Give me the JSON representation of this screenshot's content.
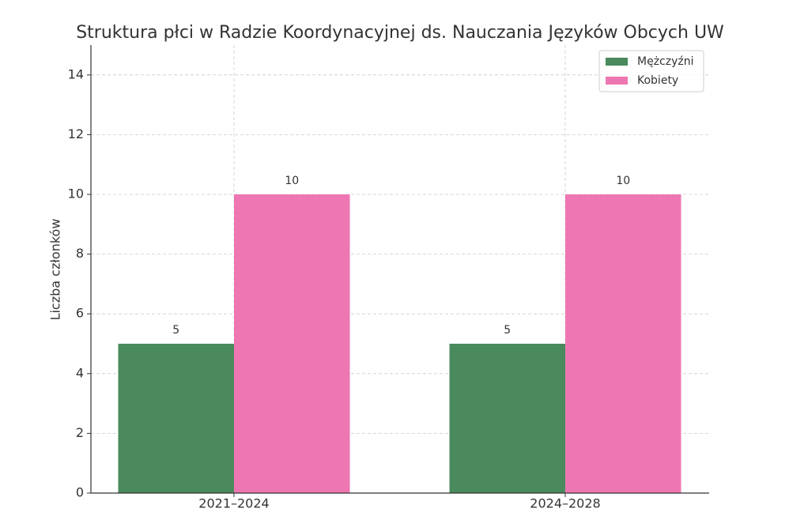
{
  "chart_data": {
    "type": "grouped_bar",
    "title": "Struktura płci w Radzie Koordynacyjnej ds. Nauczania Języków Obcych UW",
    "y_label": "Liczba członków",
    "categories": [
      "2021–2024",
      "2024–2028"
    ],
    "series": [
      {
        "name": "Mężczyźni",
        "color": "#4a8a5c",
        "values": [
          5,
          5
        ]
      },
      {
        "name": "Kobiety",
        "color": "#ee76b2",
        "values": [
          10,
          10
        ]
      }
    ],
    "ylim": [
      0,
      15
    ],
    "yticks": [
      0,
      2,
      4,
      6,
      8,
      10,
      12,
      14
    ],
    "grid": true,
    "legend": "upper right",
    "data_labels": true
  }
}
